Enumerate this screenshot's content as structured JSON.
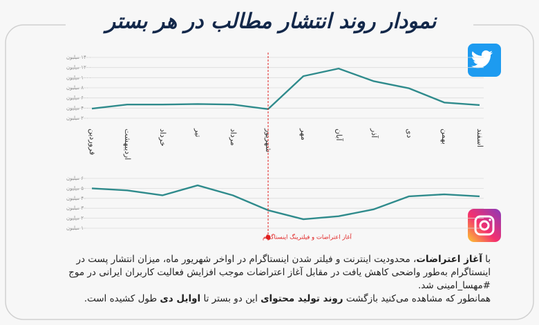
{
  "title": "نمودار روند انتشار مطالب در هر بستر",
  "chart_data": [
    {
      "type": "line",
      "platform": "twitter",
      "categories": [
        "فروردین",
        "اردیبهشت",
        "خرداد",
        "تیر",
        "مرداد",
        "شهریور",
        "مهر",
        "آبان",
        "آذر",
        "دی",
        "بهمن",
        "اسفند"
      ],
      "series": [
        {
          "color": "#2f8b8c",
          "values": [
            390,
            470,
            470,
            480,
            470,
            380,
            1030,
            1180,
            930,
            790,
            510,
            460
          ]
        }
      ],
      "ylim": [
        200,
        1400
      ],
      "yticks": [
        {
          "value": 200,
          "label": "۲۰۰ میلیون"
        },
        {
          "value": 400,
          "label": "۴۰۰ میلیون"
        },
        {
          "value": 600,
          "label": "۶۰۰ میلیون"
        },
        {
          "value": 800,
          "label": "۸۰۰ میلیون"
        },
        {
          "value": 1000,
          "label": "۱۰۰۰ میلیون"
        },
        {
          "value": 1200,
          "label": "۱۲۰۰ میلیون"
        },
        {
          "value": 1400,
          "label": "۱۴۰۰ میلیون"
        }
      ],
      "grid": true
    },
    {
      "type": "line",
      "platform": "instagram",
      "series": [
        {
          "color": "#2f8b8c",
          "values": [
            50,
            48,
            43,
            53,
            43,
            28,
            19,
            22,
            29,
            42,
            44,
            42
          ]
        }
      ],
      "ylim": [
        10,
        60
      ],
      "yticks": [
        {
          "value": 10,
          "label": "۱۰ میلیون"
        },
        {
          "value": 20,
          "label": "۲۰ میلیون"
        },
        {
          "value": 30,
          "label": "۳۰ میلیون"
        },
        {
          "value": 40,
          "label": "۴۰ میلیون"
        },
        {
          "value": 50,
          "label": "۵۰ میلیون"
        },
        {
          "value": 60,
          "label": "۶۰ میلیون"
        }
      ],
      "grid": true,
      "annotation": {
        "text": "آغاز اعتراضات و فیلترینگ اینستاگرام",
        "at": "شهریور",
        "color": "#e02020"
      }
    }
  ],
  "caption": {
    "paragraphs": [
      [
        {
          "text": "با ",
          "bold": false
        },
        {
          "text": "آغاز اعتراضات",
          "bold": true
        },
        {
          "text": "، محدودیت اینترنت و فیلتر شدن اینستاگرام در اواخر شهریور ماه، میزان انتشار پست در اینستاگرام به‌طور واضحی کاهش یافت در مقابل آغاز اعتراضات موجب افزایش فعالیت کاربران ایرانی در موج #مهسا_امینی شد.",
          "bold": false
        }
      ],
      [
        {
          "text": "همانطور که مشاهده می‌کنید بازگشت ",
          "bold": false
        },
        {
          "text": "روند تولید محتوای",
          "bold": true
        },
        {
          "text": " این دو بستر تا ",
          "bold": false
        },
        {
          "text": "اوایل دی",
          "bold": true
        },
        {
          "text": " طول کشیده است.",
          "bold": false
        }
      ]
    ]
  }
}
